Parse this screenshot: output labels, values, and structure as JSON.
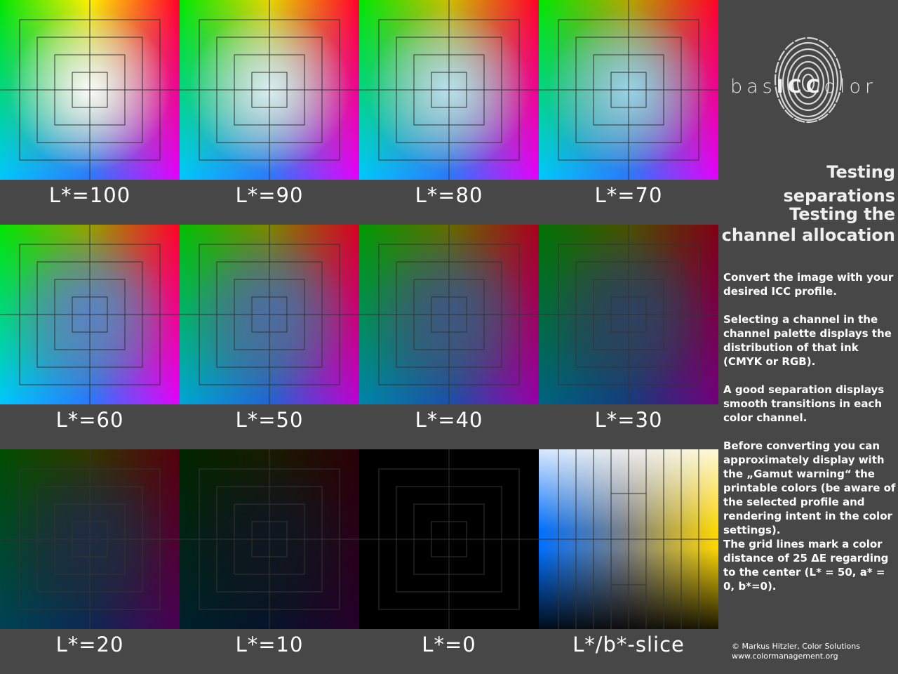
{
  "panels": [
    {
      "label": "L*=100",
      "lightness": 100
    },
    {
      "label": "L*=90",
      "lightness": 90
    },
    {
      "label": "L*=80",
      "lightness": 80
    },
    {
      "label": "L*=70",
      "lightness": 70
    },
    {
      "label": "L*=60",
      "lightness": 60
    },
    {
      "label": "L*=50",
      "lightness": 50
    },
    {
      "label": "L*=40",
      "lightness": 40
    },
    {
      "label": "L*=30",
      "lightness": 30
    },
    {
      "label": "L*=20",
      "lightness": 20
    },
    {
      "label": "L*=10",
      "lightness": 10
    },
    {
      "label": "L*=0",
      "lightness": 0
    },
    {
      "label": "L*/b*-slice",
      "lightness": null
    }
  ],
  "sidebar": {
    "logo": {
      "prefix": "bas",
      "middle": "ICC",
      "suffix": "olor",
      "icon": "fingerprint-icon"
    },
    "heading1": "Testing separations",
    "heading2_line1": "Testing the",
    "heading2_line2": "channel allocation",
    "paragraphs": {
      "p1": "Convert the image with your desired ICC profile.",
      "p2": "Selecting a channel in the channel palette displays the distribution of that ink (CMYK or RGB).",
      "p3": "A good separation displays smooth transitions in each color channel.",
      "p4": "Before converting you can approximately display with the „Gamut warning“ the printable colors (be aware of the selected profile and rendering intent in the color settings).",
      "p5": "The grid lines mark a color distance of 25 ΔE regarding to the center (L* = 50,  a* = 0, b*=0)."
    },
    "footer_line1": "© Markus Hitzler, Color Solutions",
    "footer_line2": "www.colormanagement.org"
  },
  "colors": {
    "background": "#474747",
    "text": "#ffffff",
    "grid": "#333333"
  }
}
